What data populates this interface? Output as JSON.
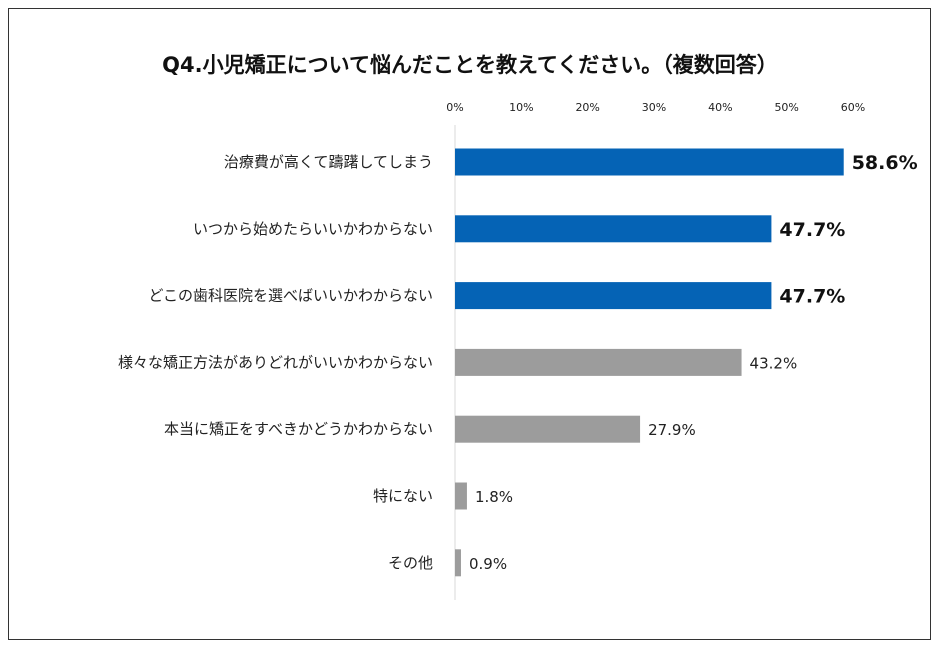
{
  "chart_data": {
    "type": "bar",
    "orientation": "horizontal",
    "title": "Q4.小児矯正について悩んだことを教えてください。（複数回答）",
    "xlim": [
      0,
      60
    ],
    "xticks": [
      "0%",
      "10%",
      "20%",
      "30%",
      "40%",
      "50%",
      "60%"
    ],
    "tick_position": "top",
    "grid": false,
    "categories": [
      "治療費が高くて躊躇してしまう",
      "いつから始めたらいいかわからない",
      "どこの歯科医院を選べばいいかわからない",
      "様々な矯正方法がありどれがいいかわからない",
      "本当に矯正をすべきかどうかわからない",
      "特にない",
      "その他"
    ],
    "values": [
      58.6,
      47.7,
      47.7,
      43.2,
      27.9,
      1.8,
      0.9
    ],
    "labels": [
      "58.6%",
      "47.7%",
      "47.7%",
      "43.2%",
      "27.9%",
      "1.8%",
      "0.9%"
    ],
    "highlight_top": 3,
    "colors": {
      "highlight": "#0563B5",
      "normal": "#9C9C9C",
      "axis": "#D9D9D9"
    }
  }
}
